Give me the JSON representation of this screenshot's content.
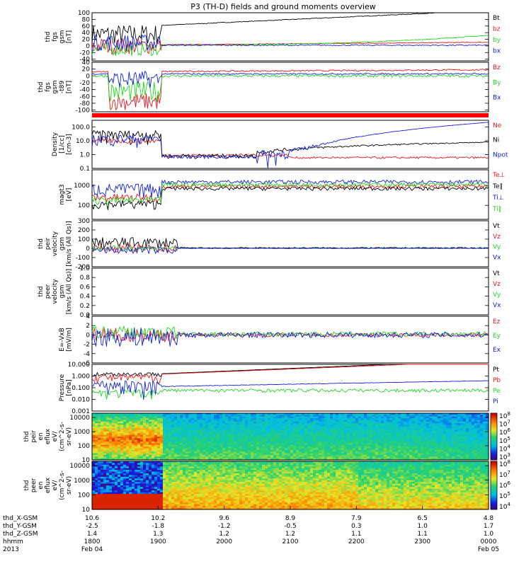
{
  "chart_data": {
    "type": "line",
    "title": "P3 (TH-D) fields and ground moments overview",
    "colors": {
      "black": "#000000",
      "red": "#e8131a",
      "green": "#1ed61e",
      "blue": "#1020e0"
    },
    "time_axis": {
      "tick_labels": {
        "thd_X-GSM": [
          "10.6",
          "10.2",
          "9.6",
          "8.9",
          "7.9",
          "6.5",
          "4.8"
        ],
        "thd_Y-GSM": [
          "-2.5",
          "-1.8",
          "-1.2",
          "-0.5",
          "0.3",
          "1.0",
          "1.7"
        ],
        "thd_Z-GSM": [
          "1.4",
          "1.3",
          "1.2",
          "1.2",
          "1.1",
          "1.1",
          "1.0"
        ],
        "hhmm": [
          "1800",
          "1900",
          "2000",
          "2100",
          "2200",
          "2300",
          "0000"
        ]
      },
      "row_labels": [
        "thd_X-GSM",
        "thd_Y-GSM",
        "thd_Z-GSM",
        "hhmm",
        "2013"
      ],
      "date_start": "Feb 04",
      "date_end": "Feb 05"
    },
    "panels": [
      {
        "ylabel": [
          "thd",
          "fgs",
          "gsm",
          "[nT]"
        ],
        "ticks": [
          "100",
          "80",
          "60",
          "40",
          "20",
          "0",
          "-20",
          "-40"
        ],
        "ylim": [
          -45,
          100
        ],
        "scale": "linear",
        "legend": [
          {
            "name": "Bt",
            "color": "black"
          },
          {
            "name": "bz",
            "color": "red"
          },
          {
            "name": "by",
            "color": "green"
          },
          {
            "name": "bx",
            "color": "blue"
          }
        ]
      },
      {
        "ylabel": [
          "thd",
          "fgs",
          "gsm",
          "-t89",
          "[nT]"
        ],
        "ticks": [
          "40",
          "20",
          "0",
          "-20",
          "-40",
          "-60",
          "-80",
          "-100"
        ],
        "ylim": [
          -105,
          40
        ],
        "scale": "linear",
        "legend": [
          {
            "name": "Bz",
            "color": "red"
          },
          {
            "name": "By",
            "color": "green"
          },
          {
            "name": "Bx",
            "color": "blue"
          }
        ]
      },
      {
        "ylabel": [
          "Density",
          "[1/cc]",
          "[cm-3]"
        ],
        "ticks": [
          "100.0",
          "10.0",
          "1.0",
          "0.1"
        ],
        "ylim": [
          0.1,
          300
        ],
        "scale": "log",
        "legend": [
          {
            "name": "Ne",
            "color": "red"
          },
          {
            "name": "Ni",
            "color": "black"
          },
          {
            "name": "Npot",
            "color": "blue"
          }
        ]
      },
      {
        "ylabel": [
          "magt3",
          "[eV]"
        ],
        "ticks": [
          "1000",
          "100"
        ],
        "ylim": [
          20,
          6000
        ],
        "scale": "log",
        "legend": [
          {
            "name": "Te⊥",
            "color": "red"
          },
          {
            "name": "Te∥",
            "color": "black"
          },
          {
            "name": "Ti⊥",
            "color": "blue"
          },
          {
            "name": "Ti∥",
            "color": "green"
          }
        ]
      },
      {
        "ylabel": [
          "thd",
          "peir",
          "velocity",
          "gsm",
          "[km/s (All Qs)]"
        ],
        "ticks": [
          "300",
          "200",
          "100",
          "0",
          "-100",
          "-200"
        ],
        "ylim": [
          -200,
          300
        ],
        "scale": "linear",
        "legend": [
          {
            "name": "Vt",
            "color": "black"
          },
          {
            "name": "Vz",
            "color": "red"
          },
          {
            "name": "Vy",
            "color": "green"
          },
          {
            "name": "Vx",
            "color": "blue"
          }
        ]
      },
      {
        "ylabel": [
          "thd",
          "peer",
          "velocity",
          "gsm",
          "[km/s (All Qs)]"
        ],
        "ticks": [
          "1.0",
          "0.8",
          "0.6",
          "0.4",
          "0.2",
          "0.0"
        ],
        "ylim": [
          0,
          1
        ],
        "scale": "linear",
        "legend": [
          {
            "name": "Vt",
            "color": "black"
          },
          {
            "name": "Vz",
            "color": "red"
          },
          {
            "name": "Vy",
            "color": "green"
          },
          {
            "name": "Vx",
            "color": "blue"
          }
        ]
      },
      {
        "ylabel": [
          "E=-VxB",
          "[mV/m]"
        ],
        "ticks": [
          "4",
          "2",
          "0",
          "-2",
          "-4",
          "-6"
        ],
        "ylim": [
          -6,
          4
        ],
        "scale": "linear",
        "legend": [
          {
            "name": "Ez",
            "color": "red"
          },
          {
            "name": "Ey",
            "color": "green"
          },
          {
            "name": "Ex",
            "color": "blue"
          }
        ]
      },
      {
        "ylabel": [
          "Pressure",
          "[nPa]"
        ],
        "ticks": [
          "10.000",
          "1.000",
          "0.100",
          "0.010",
          "0.001"
        ],
        "ylim": [
          0.001,
          10
        ],
        "scale": "log",
        "legend": [
          {
            "name": "Pt",
            "color": "black"
          },
          {
            "name": "Pb",
            "color": "red"
          },
          {
            "name": "Pe",
            "color": "green"
          },
          {
            "name": "Pi",
            "color": "blue"
          }
        ]
      },
      {
        "ylabel": [
          "thd",
          "peir",
          "en",
          "eflux",
          "eV/",
          "(cm^2-s-",
          "sr-eV)"
        ],
        "ticks": [
          "10000",
          "1000",
          "100",
          "10"
        ],
        "ylim": [
          10,
          20000
        ],
        "scale": "log",
        "colorbar": {
          "ticks": [
            "10^8",
            "10^7",
            "10^6",
            "10^5",
            "10^4",
            "10^3"
          ],
          "range": [
            3,
            8
          ]
        }
      },
      {
        "ylabel": [
          "thd",
          "peer",
          "en",
          "eflux",
          "eV/",
          "(cm^2-s-",
          "sr-eV)"
        ],
        "ticks": [
          "10000",
          "1000",
          "100",
          "10"
        ],
        "ylim": [
          10,
          20000
        ],
        "scale": "log",
        "colorbar": {
          "ticks": [
            "10^8",
            "10^7",
            "10^6",
            "10^5",
            "10^4"
          ],
          "range": [
            4,
            8
          ]
        }
      }
    ]
  }
}
